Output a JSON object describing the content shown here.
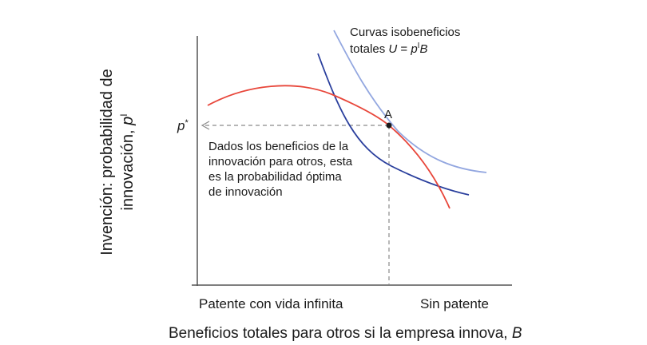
{
  "y_axis_title": {
    "line1": "Invención: probabilidad de",
    "line2_prefix": "innovación, ",
    "line2_var": "p",
    "line2_sup": "I"
  },
  "x_axis_title": {
    "text": "Beneficios totales para otros si la empresa innova, ",
    "var": "B"
  },
  "x_ticks": {
    "left": "Patente con vida infinita",
    "right": "Sin patente"
  },
  "y_tick": {
    "var": "p",
    "sup": "*"
  },
  "point_label": "A",
  "isoprofit_label": {
    "line1": "Curvas isobeneficios",
    "line2_prefix": "totales ",
    "line2_u": "U",
    "line2_eq": " = ",
    "line2_p": "p",
    "line2_sup": "I",
    "line2_b": "B"
  },
  "annotation_lines": [
    "Dados los beneficios de la",
    "innovación para otros, esta",
    "es la probabilidad óptima",
    "de innovación"
  ],
  "colors": {
    "axis": "#555555",
    "dashed": "#8a8a8a",
    "red_curve": "#e8463a",
    "dark_blue_curve": "#2a3f9d",
    "light_blue_curve": "#93a7e0",
    "point": "#1a1a1a"
  }
}
